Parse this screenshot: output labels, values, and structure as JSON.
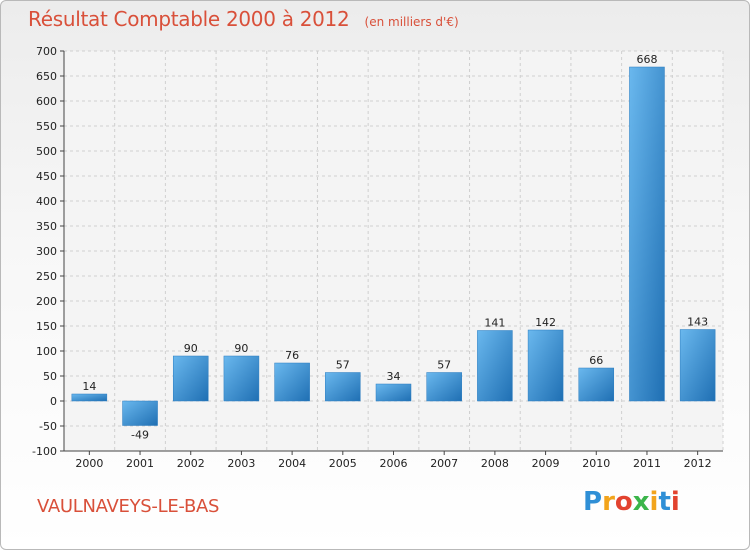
{
  "chart_data": {
    "type": "bar",
    "title": "Résultat Comptable 2000 à 2012",
    "unit": "(en milliers d'€)",
    "categories": [
      "2000",
      "2001",
      "2002",
      "2003",
      "2004",
      "2005",
      "2006",
      "2007",
      "2008",
      "2009",
      "2010",
      "2011",
      "2012"
    ],
    "values": [
      14,
      -49,
      90,
      90,
      76,
      57,
      34,
      57,
      141,
      142,
      66,
      668,
      143
    ],
    "ylim": [
      -100,
      700
    ],
    "yticks": [
      -100,
      -50,
      0,
      50,
      100,
      150,
      200,
      250,
      300,
      350,
      400,
      450,
      500,
      550,
      600,
      650,
      700
    ],
    "grid": true,
    "bar_color": "#3d95d8"
  },
  "commune": "VAULNAVEYS-LE-BAS",
  "logo": {
    "letters": [
      "P",
      "r",
      "o",
      "x",
      "i",
      "t",
      "i"
    ],
    "colors": [
      "#2f8fd6",
      "#f2a41c",
      "#e2432f",
      "#3bb54a",
      "#f2a41c",
      "#2f8fd6",
      "#e2432f"
    ]
  }
}
